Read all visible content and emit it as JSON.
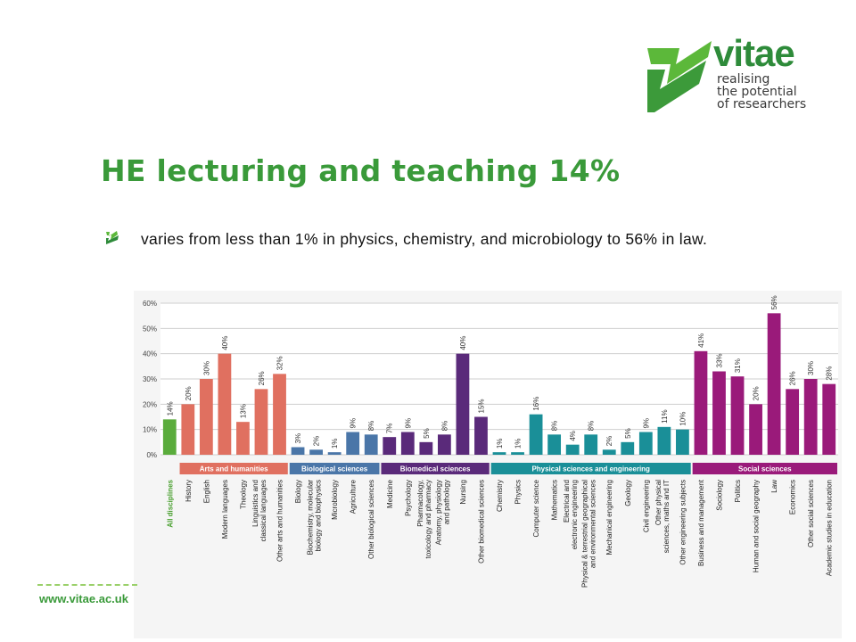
{
  "brand": {
    "name": "vitae",
    "tagline": [
      "realising",
      "the potential",
      "of researchers"
    ],
    "website": "www.vitae.ac.uk",
    "color": "#3a9a3a"
  },
  "slide": {
    "title": "HE lecturing and teaching 14%",
    "bullet": "varies from less than 1% in physics, chemistry, and microbiology to 56% in law."
  },
  "chart_data": {
    "type": "bar",
    "ylim": [
      0,
      60
    ],
    "yticks": [
      "0%",
      "10%",
      "20%",
      "30%",
      "40%",
      "50%",
      "60%"
    ],
    "grid": true,
    "categories": [
      "All disciplines",
      "History",
      "English",
      "Modern languages",
      "Theology",
      "Linguistics and classical languages",
      "Other arts and humanities",
      "Biology",
      "Biochemistry, molecular biology and biophysics",
      "Microbiology",
      "Agriculture",
      "Other biological sciences",
      "Medicine",
      "Psychology",
      "Pharmacology, toxicology and pharmacy",
      "Anatomy, physiology and pathology",
      "Nursing",
      "Other biomedical sciences",
      "Chemistry",
      "Physics",
      "Computer science",
      "Mathematics",
      "Electrical and electronic engineering",
      "Physical & terrestrial geographical and environmental sciences",
      "Mechanical engineering",
      "Geology",
      "Civil engineering",
      "Other physical sciences, maths and IT",
      "Other engineering subjects",
      "Business and management",
      "Sociology",
      "Politics",
      "Human and social geography",
      "Law",
      "Economics",
      "Other social sciences",
      "Academic studies in education"
    ],
    "values": [
      14,
      20,
      30,
      40,
      13,
      26,
      32,
      3,
      2,
      1,
      9,
      8,
      7,
      9,
      5,
      8,
      40,
      15,
      1,
      1,
      16,
      8,
      4,
      8,
      2,
      5,
      9,
      11,
      10,
      41,
      33,
      31,
      20,
      56,
      26,
      30,
      28
    ],
    "value_labels": [
      "14%",
      "20%",
      "30%",
      "40%",
      "13%",
      "26%",
      "32%",
      "3%",
      "2%",
      "1%",
      "9%",
      "8%",
      "7%",
      "9%",
      "5%",
      "8%",
      "40%",
      "15%",
      "1%",
      "1%",
      "16%",
      "8%",
      "4%",
      "8%",
      "2%",
      "5%",
      "9%",
      "11%",
      "10%",
      "41%",
      "33%",
      "31%",
      "20%",
      "56%",
      "26%",
      "30%",
      "28%"
    ],
    "groups": [
      {
        "name": "All disciplines",
        "start": 0,
        "count": 1,
        "color": "#5aac3c",
        "labeled": false
      },
      {
        "name": "Arts and humanities",
        "start": 1,
        "count": 6,
        "color": "#e07060",
        "labeled": true
      },
      {
        "name": "Biological sciences",
        "start": 7,
        "count": 5,
        "color": "#4a76a8",
        "labeled": true
      },
      {
        "name": "Biomedical sciences",
        "start": 12,
        "count": 6,
        "color": "#5a2a7a",
        "labeled": true
      },
      {
        "name": "Physical sciences and engineering",
        "start": 18,
        "count": 11,
        "color": "#1a8f98",
        "labeled": true
      },
      {
        "name": "Social sciences",
        "start": 29,
        "count": 8,
        "color": "#9a1a7a",
        "labeled": true
      }
    ]
  }
}
